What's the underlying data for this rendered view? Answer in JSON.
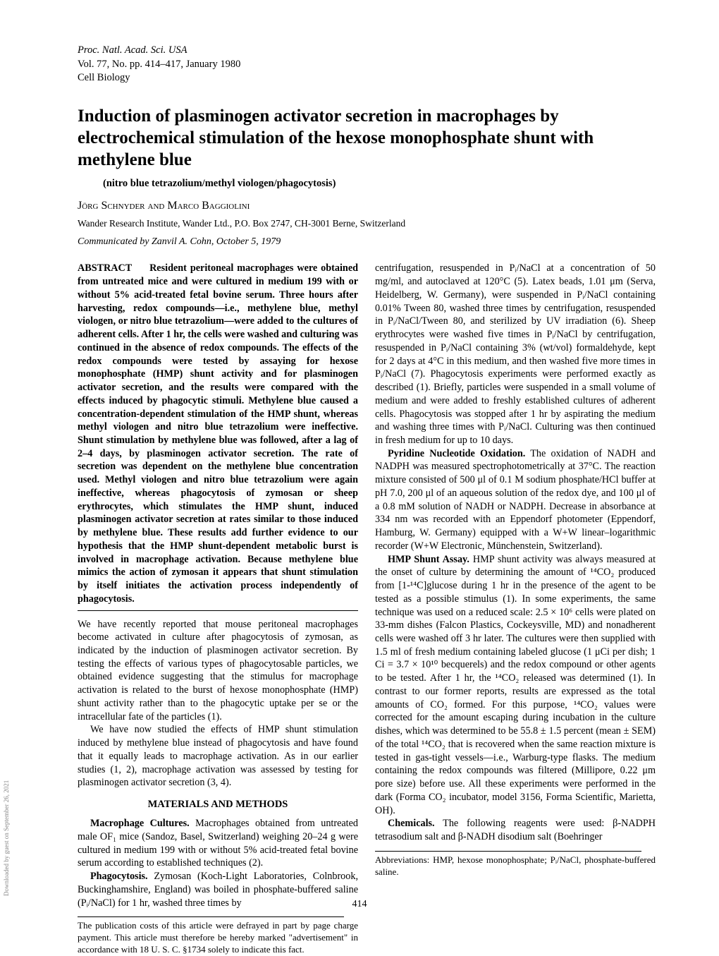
{
  "journal": {
    "line1": "Proc. Natl. Acad. Sci. USA",
    "line2": "Vol. 77, No. pp. 414–417, January 1980",
    "line3": "Cell Biology"
  },
  "title": "Induction of plasminogen activator secretion in macrophages by electrochemical stimulation of the hexose monophosphate shunt with methylene blue",
  "subtitle": "(nitro blue tetrazolium/methyl viologen/phagocytosis)",
  "authors": "Jörg Schnyder and Marco Baggiolini",
  "affiliation": "Wander Research Institute, Wander Ltd., P.O. Box 2747, CH-3001 Berne, Switzerland",
  "communicated": "Communicated by Zanvil A. Cohn, October 5, 1979",
  "abstract_label": "ABSTRACT",
  "abstract_text": "Resident peritoneal macrophages were obtained from untreated mice and were cultured in medium 199 with or without 5% acid-treated fetal bovine serum. Three hours after harvesting, redox compounds—i.e., methylene blue, methyl viologen, or nitro blue tetrazolium—were added to the cultures of adherent cells. After 1 hr, the cells were washed and culturing was continued in the absence of redox compounds. The effects of the redox compounds were tested by assaying for hexose monophosphate (HMP) shunt activity and for plasminogen activator secretion, and the results were compared with the effects induced by phagocytic stimuli. Methylene blue caused a concentration-dependent stimulation of the HMP shunt, whereas methyl viologen and nitro blue tetrazolium were ineffective. Shunt stimulation by methylene blue was followed, after a lag of 2–4 days, by plasminogen activator secretion. The rate of secretion was dependent on the methylene blue concentration used. Methyl viologen and nitro blue tetrazolium were again ineffective, whereas phagocytosis of zymosan or sheep erythrocytes, which stimulates the HMP shunt, induced plasminogen activator secretion at rates similar to those induced by methylene blue. These results add further evidence to our hypothesis that the HMP shunt-dependent metabolic burst is involved in macrophage activation. Because methylene blue mimics the action of zymosan it appears that shunt stimulation by itself initiates the activation process independently of phagocytosis.",
  "intro_p1": "We have recently reported that mouse peritoneal macrophages become activated in culture after phagocytosis of zymosan, as indicated by the induction of plasminogen activator secretion. By testing the effects of various types of phagocytosable particles, we obtained evidence suggesting that the stimulus for macrophage activation is related to the burst of hexose monophosphate (HMP) shunt activity rather than to the phagocytic uptake per se or the intracellular fate of the particles (1).",
  "intro_p2": "We have now studied the effects of HMP shunt stimulation induced by methylene blue instead of phagocytosis and have found that it equally leads to macrophage activation. As in our earlier studies (1, 2), macrophage activation was assessed by testing for plasminogen activator secretion (3, 4).",
  "section_head": "MATERIALS AND METHODS",
  "mm_p1_head": "Macrophage Cultures.",
  "mm_p1": "Macrophages obtained from untreated male OF₁ mice (Sandoz, Basel, Switzerland) weighing 20–24 g were cultured in medium 199 with or without 5% acid-treated fetal bovine serum according to established techniques (2).",
  "mm_p2_head": "Phagocytosis.",
  "mm_p2": "Zymosan (Koch-Light Laboratories, Colnbrook, Buckinghamshire, England) was boiled in phosphate-buffered saline (Pᵢ/NaCl) for 1 hr, washed three times by",
  "footnote_left": "The publication costs of this article were defrayed in part by page charge payment. This article must therefore be hereby marked \"advertisement\" in accordance with 18 U. S. C. §1734 solely to indicate this fact.",
  "col2_p1": "centrifugation, resuspended in Pᵢ/NaCl at a concentration of 50 mg/ml, and autoclaved at 120°C (5). Latex beads, 1.01 μm (Serva, Heidelberg, W. Germany), were suspended in Pᵢ/NaCl containing 0.01% Tween 80, washed three times by centrifugation, resuspended in Pᵢ/NaCl/Tween 80, and sterilized by UV irradiation (6). Sheep erythrocytes were washed five times in Pᵢ/NaCl by centrifugation, resuspended in Pᵢ/NaCl containing 3% (wt/vol) formaldehyde, kept for 2 days at 4°C in this medium, and then washed five more times in Pᵢ/NaCl (7). Phagocytosis experiments were performed exactly as described (1). Briefly, particles were suspended in a small volume of medium and were added to freshly established cultures of adherent cells. Phagocytosis was stopped after 1 hr by aspirating the medium and washing three times with Pᵢ/NaCl. Culturing was then continued in fresh medium for up to 10 days.",
  "col2_p2_head": "Pyridine Nucleotide Oxidation.",
  "col2_p2": "The oxidation of NADH and NADPH was measured spectrophotometrically at 37°C. The reaction mixture consisted of 500 μl of 0.1 M sodium phosphate/HCl buffer at pH 7.0, 200 μl of an aqueous solution of the redox dye, and 100 μl of a 0.8 mM solution of NADH or NADPH. Decrease in absorbance at 334 nm was recorded with an Eppendorf photometer (Eppendorf, Hamburg, W. Germany) equipped with a W+W linear–logarithmic recorder (W+W Electronic, Münchenstein, Switzerland).",
  "col2_p3_head": "HMP Shunt Assay.",
  "col2_p3": "HMP shunt activity was always measured at the onset of culture by determining the amount of ¹⁴CO₂ produced from [1-¹⁴C]glucose during 1 hr in the presence of the agent to be tested as a possible stimulus (1). In some experiments, the same technique was used on a reduced scale: 2.5 × 10⁶ cells were plated on 33-mm dishes (Falcon Plastics, Cockeysville, MD) and nonadherent cells were washed off 3 hr later. The cultures were then supplied with 1.5 ml of fresh medium containing labeled glucose (1 μCi per dish; 1 Ci = 3.7 × 10¹⁰ becquerels) and the redox compound or other agents to be tested. After 1 hr, the ¹⁴CO₂ released was determined (1). In contrast to our former reports, results are expressed as the total amounts of CO₂ formed. For this purpose, ¹⁴CO₂ values were corrected for the amount escaping during incubation in the culture dishes, which was determined to be 55.8 ± 1.5 percent (mean ± SEM) of the total ¹⁴CO₂ that is recovered when the same reaction mixture is tested in gas-tight vessels—i.e., Warburg-type flasks. The medium containing the redox compounds was filtered (Millipore, 0.22 μm pore size) before use. All these experiments were performed in the dark (Forma CO₂ incubator, model 3156, Forma Scientific, Marietta, OH).",
  "col2_p4_head": "Chemicals.",
  "col2_p4": "The following reagents were used: β-NADPH tetrasodium salt and β-NADH disodium salt (Boehringer",
  "footnote_right": "Abbreviations: HMP, hexose monophosphate; Pᵢ/NaCl, phosphate-buffered saline.",
  "pagenum": "414",
  "sidetext": "Downloaded by guest on September 26, 2021"
}
